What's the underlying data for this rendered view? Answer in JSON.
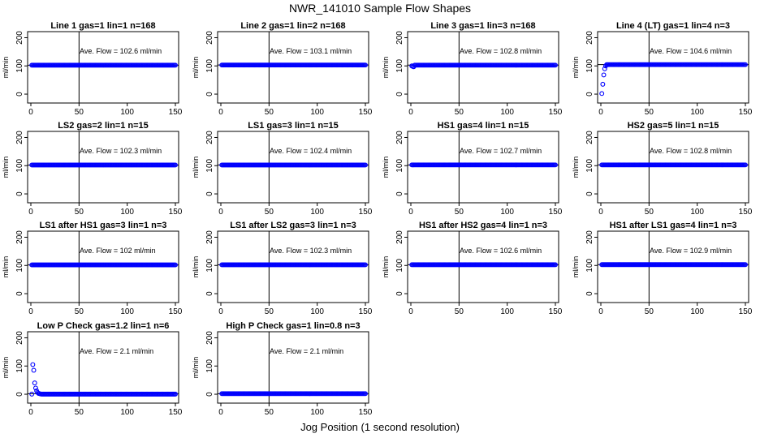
{
  "title": "NWR_141010  Sample Flow Shapes",
  "xlabel": "Jog Position (1 second resolution)",
  "ylabel": "ml/min",
  "annotation_prefix": "Ave. Flow = ",
  "annotation_unit": "ml/min",
  "colors": {
    "points": "#0000ff",
    "axes": "#000000",
    "refline": "#000000"
  },
  "chart_data": [
    {
      "type": "scatter",
      "title": "Line 1 gas=1 lin=1 n=168",
      "ave_flow": "102.6",
      "xlim": [
        0,
        150
      ],
      "ylim": [
        -20,
        210
      ],
      "xticks": [
        0,
        50,
        100,
        150
      ],
      "yticks": [
        0,
        100,
        200
      ],
      "marker": "open-circle",
      "series": [
        {
          "x_range": [
            1,
            150
          ],
          "y_mode": "constant",
          "value": 102.6,
          "ramp": []
        }
      ],
      "vline_x": 50,
      "hline_y": 102.6
    },
    {
      "type": "scatter",
      "title": "Line 2 gas=1 lin=2 n=168",
      "ave_flow": "103.1",
      "xlim": [
        0,
        150
      ],
      "ylim": [
        -20,
        210
      ],
      "xticks": [
        0,
        50,
        100,
        150
      ],
      "yticks": [
        0,
        100,
        200
      ],
      "marker": "open-circle",
      "series": [
        {
          "x_range": [
            1,
            150
          ],
          "y_mode": "constant",
          "value": 103.1,
          "ramp": []
        }
      ],
      "vline_x": 50,
      "hline_y": 103.1
    },
    {
      "type": "scatter",
      "title": "Line 3 gas=1 lin=3 n=168",
      "ave_flow": "102.8",
      "xlim": [
        0,
        150
      ],
      "ylim": [
        -20,
        210
      ],
      "xticks": [
        0,
        50,
        100,
        150
      ],
      "yticks": [
        0,
        100,
        200
      ],
      "marker": "open-circle",
      "series": [
        {
          "x_range": [
            1,
            150
          ],
          "y_mode": "constant",
          "value": 102.8,
          "ramp": [
            [
              1,
              100
            ],
            [
              2,
              98
            ],
            [
              3,
              97
            ]
          ]
        }
      ],
      "vline_x": 50,
      "hline_y": 102.8
    },
    {
      "type": "scatter",
      "title": "Line 4 (LT) gas=1 lin=4 n=3",
      "ave_flow": "104.6",
      "xlim": [
        0,
        150
      ],
      "ylim": [
        -20,
        210
      ],
      "xticks": [
        0,
        50,
        100,
        150
      ],
      "yticks": [
        0,
        100,
        200
      ],
      "marker": "open-circle",
      "series": [
        {
          "x_range": [
            1,
            150
          ],
          "y_mode": "constant",
          "value": 104.6,
          "ramp": [
            [
              1,
              2
            ],
            [
              2,
              35
            ],
            [
              3,
              68
            ],
            [
              4,
              90
            ],
            [
              5,
              100
            ]
          ]
        }
      ],
      "vline_x": 50,
      "hline_y": 104.6
    },
    {
      "type": "scatter",
      "title": "LS2 gas=2 lin=1 n=15",
      "ave_flow": "102.3",
      "xlim": [
        0,
        150
      ],
      "ylim": [
        -20,
        210
      ],
      "xticks": [
        0,
        50,
        100,
        150
      ],
      "yticks": [
        0,
        100,
        200
      ],
      "marker": "open-circle",
      "series": [
        {
          "x_range": [
            1,
            150
          ],
          "y_mode": "constant",
          "value": 102.3,
          "ramp": []
        }
      ],
      "vline_x": 50,
      "hline_y": 102.3
    },
    {
      "type": "scatter",
      "title": "LS1 gas=3 lin=1 n=15",
      "ave_flow": "102.4",
      "xlim": [
        0,
        150
      ],
      "ylim": [
        -20,
        210
      ],
      "xticks": [
        0,
        50,
        100,
        150
      ],
      "yticks": [
        0,
        100,
        200
      ],
      "marker": "open-circle",
      "series": [
        {
          "x_range": [
            1,
            150
          ],
          "y_mode": "constant",
          "value": 102.4,
          "ramp": []
        }
      ],
      "vline_x": 50,
      "hline_y": 102.4
    },
    {
      "type": "scatter",
      "title": "HS1 gas=4 lin=1 n=15",
      "ave_flow": "102.7",
      "xlim": [
        0,
        150
      ],
      "ylim": [
        -20,
        210
      ],
      "xticks": [
        0,
        50,
        100,
        150
      ],
      "yticks": [
        0,
        100,
        200
      ],
      "marker": "open-circle",
      "series": [
        {
          "x_range": [
            1,
            150
          ],
          "y_mode": "constant",
          "value": 102.7,
          "ramp": []
        }
      ],
      "vline_x": 50,
      "hline_y": 102.7
    },
    {
      "type": "scatter",
      "title": "HS2 gas=5 lin=1 n=15",
      "ave_flow": "102.8",
      "xlim": [
        0,
        150
      ],
      "ylim": [
        -20,
        210
      ],
      "xticks": [
        0,
        50,
        100,
        150
      ],
      "yticks": [
        0,
        100,
        200
      ],
      "marker": "open-circle",
      "series": [
        {
          "x_range": [
            1,
            150
          ],
          "y_mode": "constant",
          "value": 102.8,
          "ramp": []
        }
      ],
      "vline_x": 50,
      "hline_y": 102.8
    },
    {
      "type": "scatter",
      "title": "LS1 after HS1 gas=3 lin=1 n=3",
      "ave_flow": "102",
      "xlim": [
        0,
        150
      ],
      "ylim": [
        -20,
        210
      ],
      "xticks": [
        0,
        50,
        100,
        150
      ],
      "yticks": [
        0,
        100,
        200
      ],
      "marker": "open-circle",
      "series": [
        {
          "x_range": [
            1,
            150
          ],
          "y_mode": "constant",
          "value": 102,
          "ramp": []
        }
      ],
      "vline_x": 50,
      "hline_y": 102
    },
    {
      "type": "scatter",
      "title": "LS1 after LS2 gas=3 lin=1 n=3",
      "ave_flow": "102.3",
      "xlim": [
        0,
        150
      ],
      "ylim": [
        -20,
        210
      ],
      "xticks": [
        0,
        50,
        100,
        150
      ],
      "yticks": [
        0,
        100,
        200
      ],
      "marker": "open-circle",
      "series": [
        {
          "x_range": [
            1,
            150
          ],
          "y_mode": "constant",
          "value": 102.3,
          "ramp": []
        }
      ],
      "vline_x": 50,
      "hline_y": 102.3
    },
    {
      "type": "scatter",
      "title": "HS1 after HS2 gas=4 lin=1 n=3",
      "ave_flow": "102.6",
      "xlim": [
        0,
        150
      ],
      "ylim": [
        -20,
        210
      ],
      "xticks": [
        0,
        50,
        100,
        150
      ],
      "yticks": [
        0,
        100,
        200
      ],
      "marker": "open-circle",
      "series": [
        {
          "x_range": [
            1,
            150
          ],
          "y_mode": "constant",
          "value": 102.6,
          "ramp": []
        }
      ],
      "vline_x": 50,
      "hline_y": 102.6
    },
    {
      "type": "scatter",
      "title": "HS1 after LS1 gas=4 lin=1 n=3",
      "ave_flow": "102.9",
      "xlim": [
        0,
        150
      ],
      "ylim": [
        -20,
        210
      ],
      "xticks": [
        0,
        50,
        100,
        150
      ],
      "yticks": [
        0,
        100,
        200
      ],
      "marker": "open-circle",
      "series": [
        {
          "x_range": [
            1,
            150
          ],
          "y_mode": "constant",
          "value": 102.9,
          "ramp": []
        }
      ],
      "vline_x": 50,
      "hline_y": 102.9
    },
    {
      "type": "scatter",
      "title": "Low P Check gas=1.2 lin=1 n=6",
      "ave_flow": "2.1",
      "xlim": [
        0,
        150
      ],
      "ylim": [
        -20,
        210
      ],
      "xticks": [
        0,
        50,
        100,
        150
      ],
      "yticks": [
        0,
        100,
        200
      ],
      "marker": "open-circle",
      "series": [
        {
          "x_range": [
            1,
            150
          ],
          "y_mode": "constant",
          "value": 0.5,
          "ramp": [
            [
              2,
              105
            ],
            [
              3,
              85
            ],
            [
              4,
              40
            ],
            [
              5,
              22
            ],
            [
              6,
              12
            ],
            [
              7,
              6
            ],
            [
              8,
              3
            ],
            [
              9,
              2
            ],
            [
              10,
              1
            ]
          ]
        }
      ],
      "vline_x": 50,
      "hline_y": 2.1
    },
    {
      "type": "scatter",
      "title": "High P Check gas=1 lin=0.8 n=3",
      "ave_flow": "2.1",
      "xlim": [
        0,
        150
      ],
      "ylim": [
        -20,
        210
      ],
      "xticks": [
        0,
        50,
        100,
        150
      ],
      "yticks": [
        0,
        100,
        200
      ],
      "marker": "open-circle",
      "series": [
        {
          "x_range": [
            1,
            150
          ],
          "y_mode": "constant",
          "value": 2.1,
          "ramp": []
        }
      ],
      "vline_x": 50,
      "hline_y": 2.1
    }
  ]
}
